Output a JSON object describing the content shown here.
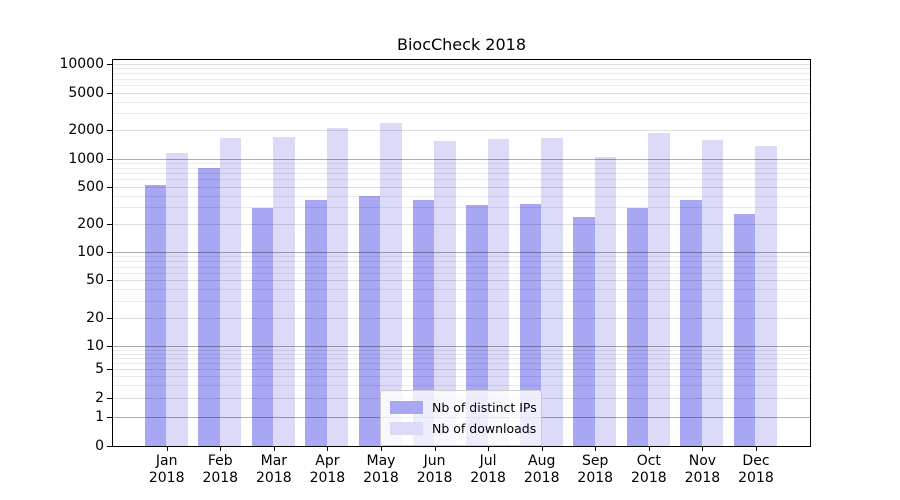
{
  "chart_data": {
    "type": "bar",
    "title": "BiocCheck 2018",
    "categories": [
      "Jan 2018",
      "Feb 2018",
      "Mar 2018",
      "Apr 2018",
      "May 2018",
      "Jun 2018",
      "Jul 2018",
      "Aug 2018",
      "Sep 2018",
      "Oct 2018",
      "Nov 2018",
      "Dec 2018"
    ],
    "series": [
      {
        "name": "Nb of distinct IPs",
        "color": "#a7a7f3",
        "values": [
          515,
          790,
          295,
          360,
          400,
          360,
          320,
          325,
          237,
          295,
          360,
          253
        ]
      },
      {
        "name": "Nb of downloads",
        "color": "#dbdbf9",
        "values": [
          1150,
          1650,
          1690,
          2100,
          2400,
          1540,
          1620,
          1660,
          1040,
          1860,
          1570,
          1360
        ]
      }
    ],
    "yscale": "log-like",
    "ylim": [
      0,
      10000
    ],
    "ytick_values": [
      10000,
      5000,
      2000,
      1000,
      500,
      200,
      100,
      50,
      20,
      10,
      5,
      2,
      1,
      0
    ],
    "ytick_labels": [
      "10000",
      "5000",
      "2000",
      "1000",
      "500",
      "200",
      "100",
      "50",
      "20",
      "10",
      "5",
      "2",
      "1",
      "0"
    ],
    "xlabel": "",
    "ylabel": "",
    "grid": true,
    "legend_position": "inside bottom-center",
    "legend_entries": [
      "Nb of distinct IPs",
      "Nb of downloads"
    ]
  },
  "colors": {
    "bar_distinct_ips": "#a7a7f3",
    "bar_downloads": "#dbdbf9",
    "grid_major": "rgba(0,0,0,0.32)",
    "grid_labeled": "rgba(0,0,0,0.13)",
    "grid_minor": "rgba(0,0,0,0.08)",
    "spine": "#000000",
    "legend_border": "#cccccc"
  }
}
